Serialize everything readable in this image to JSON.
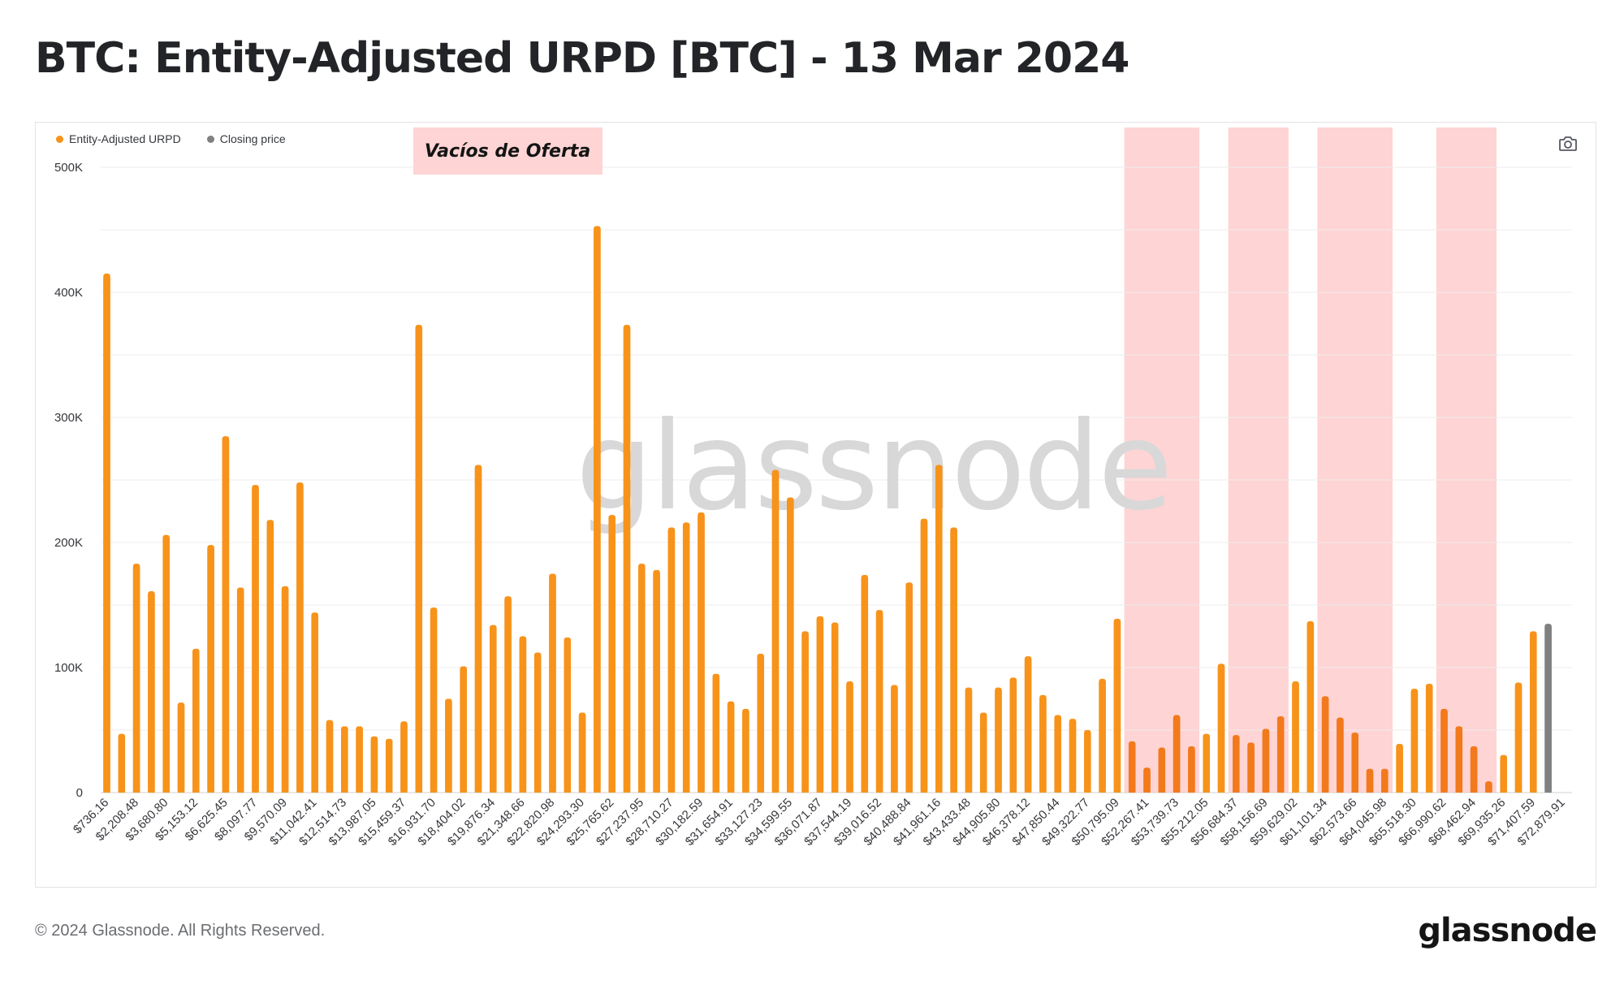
{
  "title": "BTC: Entity-Adjusted URPD [BTC] - 13 Mar 2024",
  "legend": [
    {
      "label": "Entity-Adjusted URPD",
      "color": "#f7931a"
    },
    {
      "label": "Closing price",
      "color": "#808080"
    }
  ],
  "camera_icon": "camera-icon",
  "watermark": "glassnode",
  "footer": {
    "copyright": "© 2024 Glassnode. All Rights Reserved.",
    "logo": "glassnode"
  },
  "chart_data": {
    "type": "bar",
    "title": "BTC: Entity-Adjusted URPD [BTC] - 13 Mar 2024",
    "xlabel": "",
    "ylabel": "",
    "ylim": [
      0,
      500000
    ],
    "y_ticks": [
      0,
      100000,
      200000,
      300000,
      400000,
      500000
    ],
    "y_tick_labels": [
      "0",
      "100K",
      "200K",
      "300K",
      "400K",
      "500K"
    ],
    "grid": "horizontal",
    "legend_position": "top-left",
    "colors": {
      "urpd": "#f7931a",
      "urpd_shaded": "#f27a1c",
      "closing_price": "#808080",
      "band": "#ffd4d4"
    },
    "bucket_width": 735.9,
    "first_bucket": 736.16,
    "tick_labels": [
      "$736.16",
      "$2,208.48",
      "$3,680.80",
      "$5,153.12",
      "$6,625.45",
      "$8,097.77",
      "$9,570.09",
      "$11,042.41",
      "$12,514.73",
      "$13,987.05",
      "$15,459.37",
      "$16,931.70",
      "$18,404.02",
      "$19,876.34",
      "$21,348.66",
      "$22,820.98",
      "$24,293.30",
      "$25,765.62",
      "$27,237.95",
      "$28,710.27",
      "$30,182.59",
      "$31,654.91",
      "$33,127.23",
      "$34,599.55",
      "$36,071.87",
      "$37,544.19",
      "$39,016.52",
      "$40,488.84",
      "$41,961.16",
      "$43,433.48",
      "$44,905.80",
      "$46,378.12",
      "$47,850.44",
      "$49,322.77",
      "$50,795.09",
      "$52,267.41",
      "$53,739.73",
      "$55,212.05",
      "$56,684.37",
      "$58,156.69",
      "$59,629.02",
      "$61,101.34",
      "$62,573.66",
      "$64,045.98",
      "$65,518.30",
      "$66,990.62",
      "$68,462.94",
      "$69,935.26",
      "$71,407.59",
      "$72,879.91"
    ],
    "series": [
      {
        "name": "Entity-Adjusted URPD",
        "values": [
          415000,
          47000,
          183000,
          161000,
          206000,
          72000,
          115000,
          198000,
          285000,
          164000,
          246000,
          218000,
          165000,
          248000,
          144000,
          58000,
          53000,
          53000,
          45000,
          43000,
          57000,
          374000,
          148000,
          75000,
          101000,
          262000,
          134000,
          157000,
          125000,
          112000,
          175000,
          124000,
          64000,
          453000,
          222000,
          374000,
          183000,
          178000,
          212000,
          216000,
          224000,
          95000,
          73000,
          67000,
          111000,
          258000,
          236000,
          129000,
          141000,
          136000,
          89000,
          174000,
          146000,
          86000,
          168000,
          219000,
          262000,
          212000,
          84000,
          64000,
          84000,
          92000,
          109000,
          78000,
          62000,
          59000,
          50000,
          91000,
          139000,
          41000,
          20000,
          36000,
          62000,
          37000,
          47000,
          103000,
          46000,
          40000,
          51000,
          61000,
          89000,
          137000,
          77000,
          60000,
          48000,
          19000,
          19000,
          39000,
          83000,
          87000,
          67000,
          53000,
          37000,
          9000,
          30000,
          88000,
          129000
        ]
      },
      {
        "name": "Closing price",
        "values": [
          135000
        ]
      }
    ],
    "annotations": [
      {
        "label": "Vacíos de Oferta"
      }
    ],
    "shaded_bands_bucket_ranges": [
      [
        69,
        73
      ],
      [
        76,
        79
      ],
      [
        82,
        86
      ],
      [
        90,
        93
      ]
    ]
  }
}
